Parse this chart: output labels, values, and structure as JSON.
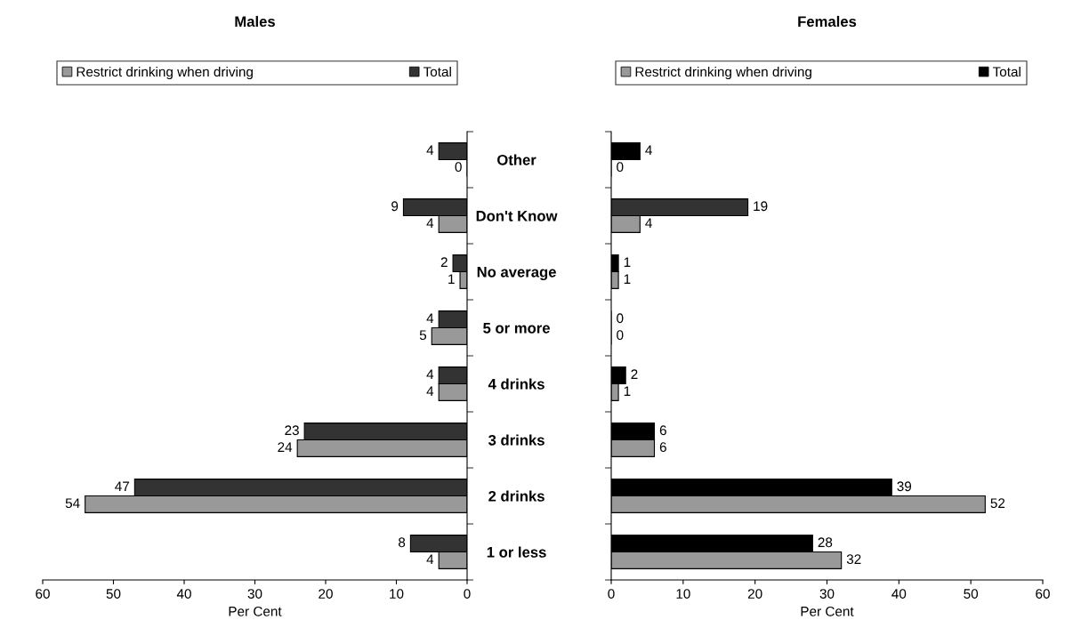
{
  "chart_data": [
    {
      "type": "bar",
      "orientation": "horizontal",
      "title": "Males",
      "xlabel": "Per Cent",
      "categories": [
        "Other",
        "Don't Know",
        "No average",
        "5 or more",
        "4 drinks",
        "3 drinks",
        "2 drinks",
        "1 or less"
      ],
      "xlim": [
        60,
        0
      ],
      "xticks": [
        0,
        10,
        20,
        30,
        40,
        50,
        60
      ],
      "data_labels": true,
      "legend": "top",
      "grid": false,
      "series": [
        {
          "name": "Restrict drinking when driving",
          "color": "#999999",
          "values": [
            0,
            4,
            1,
            5,
            4,
            24,
            54,
            4
          ]
        },
        {
          "name": "Total",
          "color": "#333333",
          "values": [
            4,
            9,
            2,
            4,
            4,
            23,
            47,
            8
          ]
        }
      ]
    },
    {
      "type": "bar",
      "orientation": "horizontal",
      "title": "Females",
      "xlabel": "Per Cent",
      "categories": [
        null,
        null,
        null,
        null,
        null,
        null,
        null,
        null
      ],
      "xlim": [
        0,
        60
      ],
      "xticks": [
        0,
        10,
        20,
        30,
        40,
        50,
        60
      ],
      "data_labels": true,
      "legend": "top",
      "grid": false,
      "series": [
        {
          "name": "Restrict drinking when driving",
          "color": "#999999",
          "values": [
            0,
            4,
            1,
            0,
            1,
            6,
            52,
            32
          ]
        },
        {
          "name": "Total",
          "color": "#000000",
          "colors": [
            "#000000",
            "#333333",
            "#000000",
            "#000000",
            "#000000",
            "#000000",
            "#000000",
            "#000000"
          ],
          "values": [
            4,
            19,
            1,
            0,
            2,
            6,
            39,
            28
          ]
        }
      ]
    }
  ]
}
